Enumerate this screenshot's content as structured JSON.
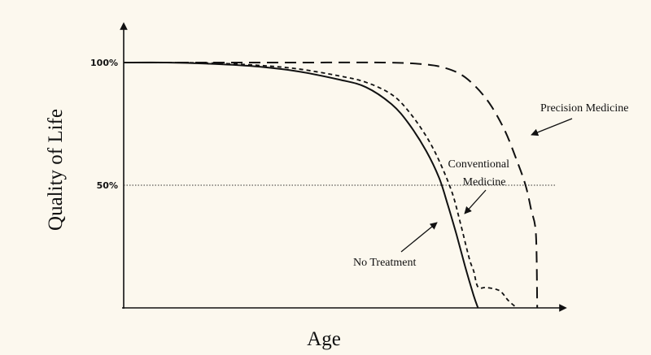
{
  "chart_data": {
    "type": "line",
    "title": "",
    "xlabel": "Age",
    "ylabel": "Quality of Life",
    "ylim": [
      0,
      100
    ],
    "xlim": [
      0,
      100
    ],
    "yticks": [
      {
        "value": 100,
        "label": "100%"
      },
      {
        "value": 50,
        "label": "50%"
      }
    ],
    "reference_line": {
      "y": 50,
      "style": "dotted"
    },
    "series": [
      {
        "name": "No Treatment",
        "style": "solid",
        "points": [
          [
            0,
            100
          ],
          [
            10,
            100
          ],
          [
            20,
            99.5
          ],
          [
            30,
            98.5
          ],
          [
            40,
            96.5
          ],
          [
            50,
            93
          ],
          [
            56,
            90
          ],
          [
            62,
            83
          ],
          [
            66,
            75
          ],
          [
            70,
            64
          ],
          [
            73,
            53
          ],
          [
            75,
            42
          ],
          [
            77,
            30
          ],
          [
            79,
            17
          ],
          [
            81,
            5
          ],
          [
            82,
            0
          ]
        ]
      },
      {
        "name": "Conventional Medicine",
        "style": "dashed",
        "points": [
          [
            0,
            100
          ],
          [
            10,
            100
          ],
          [
            20,
            99.8
          ],
          [
            30,
            99
          ],
          [
            40,
            97.5
          ],
          [
            50,
            94.5
          ],
          [
            56,
            92
          ],
          [
            62,
            87
          ],
          [
            66,
            80
          ],
          [
            70,
            70
          ],
          [
            73,
            60
          ],
          [
            76,
            47
          ],
          [
            78,
            34
          ],
          [
            80,
            20
          ],
          [
            81,
            15
          ],
          [
            82,
            8.5
          ],
          [
            84,
            8.3
          ],
          [
            87,
            7
          ],
          [
            89,
            3
          ],
          [
            91,
            0
          ]
        ]
      },
      {
        "name": "Precision Medicine",
        "style": "dashed-long",
        "points": [
          [
            0,
            100
          ],
          [
            20,
            100
          ],
          [
            40,
            100
          ],
          [
            60,
            100
          ],
          [
            68,
            99.5
          ],
          [
            74,
            98
          ],
          [
            79,
            94
          ],
          [
            84,
            85
          ],
          [
            88,
            73
          ],
          [
            91,
            60
          ],
          [
            93,
            50
          ],
          [
            94.3,
            40
          ],
          [
            95.4,
            30
          ],
          [
            95.7,
            0
          ]
        ]
      }
    ],
    "annotations": [
      {
        "lines": [
          "Precision Medicine"
        ],
        "target_series": "Precision Medicine"
      },
      {
        "lines": [
          "Conventional",
          "Medicine"
        ],
        "target_series": "Conventional Medicine"
      },
      {
        "lines": [
          "No Treatment"
        ],
        "target_series": "No Treatment"
      }
    ],
    "grid": false,
    "legend": "none"
  }
}
